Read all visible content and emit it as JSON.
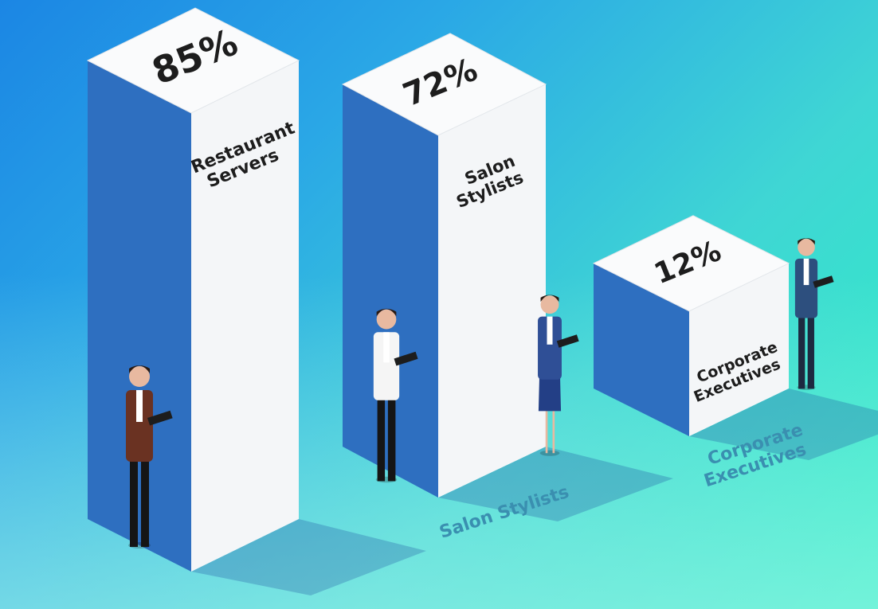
{
  "chart_data": {
    "type": "bar",
    "style": "3d-isometric-illustration",
    "categories": [
      "Restaurant Servers",
      "Salon Stylists",
      "Corporate Executives"
    ],
    "values": [
      85,
      72,
      12
    ],
    "value_labels": [
      "85%",
      "72%",
      "12%"
    ],
    "bar_labels": [
      [
        "Restaurant",
        "Servers"
      ],
      [
        "Salon",
        "Stylists"
      ],
      [
        "Corporate",
        "Executives"
      ]
    ],
    "floor_labels": [
      [
        "Salon Stylists"
      ],
      [
        "Corporate",
        "Executives"
      ]
    ],
    "unit": "%",
    "colors": {
      "bar_front": "#f4f6f8",
      "bar_side": "#2e6fc0",
      "bar_top": "#fafbfc",
      "floor_label": "#3a8fb0"
    }
  }
}
